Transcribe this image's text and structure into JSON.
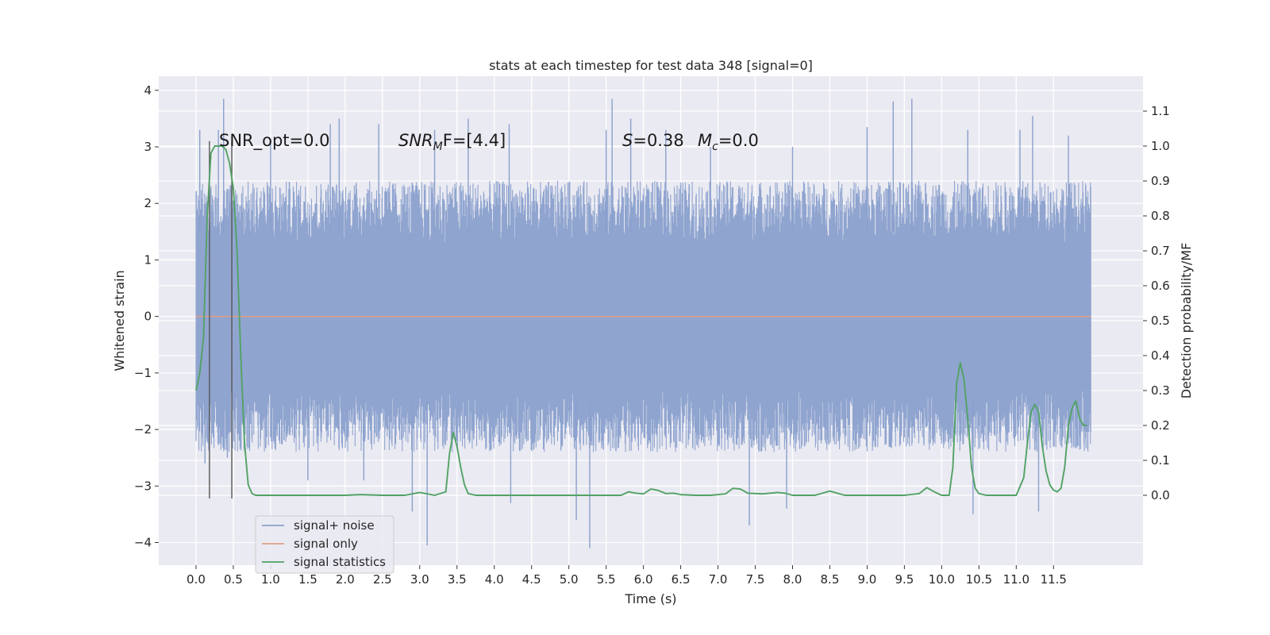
{
  "chart_data": {
    "type": "line",
    "title": "stats at each timestep for test data 348 [signal=0]",
    "xlabel": "Time (s)",
    "ylabel": "Whitened strain",
    "y2label": "Detection probability/MF",
    "xlim": [
      -0.5,
      12.7
    ],
    "ylim": [
      -4.4,
      4.25
    ],
    "y2lim": [
      -0.2,
      1.2
    ],
    "x_ticks": [
      0.0,
      0.5,
      1.0,
      1.5,
      2.0,
      2.5,
      3.0,
      3.5,
      4.0,
      4.5,
      5.0,
      5.5,
      6.0,
      6.5,
      7.0,
      7.5,
      8.0,
      8.5,
      9.0,
      9.5,
      10.0,
      10.5,
      11.0,
      11.5
    ],
    "x_tick_labels": [
      "0.0",
      "0.5",
      "1.0",
      "1.5",
      "2.0",
      "2.5",
      "3.0",
      "3.5",
      "4.0",
      "4.5",
      "5.0",
      "5.5",
      "6.0",
      "6.5",
      "7.0",
      "7.5",
      "8.0",
      "8.5",
      "9.0",
      "9.5",
      "10.0",
      "10.5",
      "11.0",
      "11.5"
    ],
    "y_ticks": [
      -4,
      -3,
      -2,
      -1,
      0,
      1,
      2,
      3,
      4
    ],
    "y_tick_labels": [
      "−4",
      "−3",
      "−2",
      "−1",
      "0",
      "1",
      "2",
      "3",
      "4"
    ],
    "y2_ticks": [
      0.0,
      0.1,
      0.2,
      0.3,
      0.4,
      0.5,
      0.6,
      0.7,
      0.8,
      0.9,
      1.0,
      1.1
    ],
    "y2_tick_labels": [
      "0.0",
      "0.1",
      "0.2",
      "0.3",
      "0.4",
      "0.5",
      "0.6",
      "0.7",
      "0.8",
      "0.9",
      "1.0",
      "1.1"
    ],
    "grid": true,
    "legend_position": "lower-left",
    "annotations": {
      "snr_opt": "SNR_opt=0.0",
      "snr_mf_main": "SNR",
      "snr_mf_sub": "M",
      "snr_mf_rest": "F=[4.4]",
      "s_var": "S",
      "s_val": "=0.38",
      "mc_var": "M",
      "mc_sub": "c",
      "mc_val": "=0.0"
    },
    "vlines": [
      0.18,
      0.48
    ],
    "vline_ymin": -3.22,
    "vline_ymax": 3.1,
    "noise": {
      "t_start": 0.0,
      "t_end": 12.0,
      "envelope_min": -2.4,
      "envelope_max": 2.4,
      "spikes": [
        {
          "x": 0.05,
          "y": 3.3
        },
        {
          "x": 0.12,
          "y": -2.6
        },
        {
          "x": 0.3,
          "y": 3.3
        },
        {
          "x": 0.37,
          "y": 3.85
        },
        {
          "x": 0.42,
          "y": -2.5
        },
        {
          "x": 1.0,
          "y": 3.05
        },
        {
          "x": 1.5,
          "y": -2.9
        },
        {
          "x": 1.8,
          "y": 3.4
        },
        {
          "x": 1.92,
          "y": 3.5
        },
        {
          "x": 2.25,
          "y": -2.9
        },
        {
          "x": 2.45,
          "y": 3.4
        },
        {
          "x": 2.9,
          "y": -3.45
        },
        {
          "x": 3.1,
          "y": -4.05
        },
        {
          "x": 3.2,
          "y": 3.3
        },
        {
          "x": 3.65,
          "y": 3.5
        },
        {
          "x": 4.2,
          "y": 3.4
        },
        {
          "x": 4.22,
          "y": -3.3
        },
        {
          "x": 5.1,
          "y": -3.6
        },
        {
          "x": 5.28,
          "y": -4.1
        },
        {
          "x": 5.58,
          "y": 3.85
        },
        {
          "x": 5.5,
          "y": 3.3
        },
        {
          "x": 5.83,
          "y": 3.5
        },
        {
          "x": 6.3,
          "y": 3.3
        },
        {
          "x": 6.9,
          "y": 3.0
        },
        {
          "x": 7.42,
          "y": -3.7
        },
        {
          "x": 8.0,
          "y": 3.0
        },
        {
          "x": 7.92,
          "y": -3.4
        },
        {
          "x": 9.0,
          "y": 3.35
        },
        {
          "x": 9.35,
          "y": 3.8
        },
        {
          "x": 9.6,
          "y": 3.85
        },
        {
          "x": 10.35,
          "y": 3.3
        },
        {
          "x": 10.42,
          "y": -3.5
        },
        {
          "x": 11.05,
          "y": 3.3
        },
        {
          "x": 11.22,
          "y": 3.55
        },
        {
          "x": 11.3,
          "y": -3.45
        },
        {
          "x": 11.7,
          "y": 3.2
        }
      ]
    },
    "series": [
      {
        "name": "signal+ noise",
        "color": "#8aa0cc",
        "axis": "left"
      },
      {
        "name": "signal only",
        "color": "#dd9f86",
        "axis": "left",
        "x": [
          0.0,
          12.0
        ],
        "y": [
          0.0,
          0.0
        ]
      },
      {
        "name": "signal statistics",
        "color": "#52a265",
        "axis": "right",
        "x": [
          0.0,
          0.05,
          0.1,
          0.15,
          0.2,
          0.25,
          0.3,
          0.35,
          0.4,
          0.45,
          0.5,
          0.55,
          0.6,
          0.65,
          0.7,
          0.75,
          0.8,
          0.9,
          1.0,
          1.5,
          2.0,
          2.2,
          2.5,
          2.8,
          3.0,
          3.2,
          3.35,
          3.4,
          3.45,
          3.5,
          3.55,
          3.6,
          3.65,
          3.75,
          3.9,
          4.5,
          5.0,
          5.5,
          5.7,
          5.8,
          5.9,
          6.0,
          6.1,
          6.2,
          6.3,
          6.4,
          6.5,
          6.7,
          6.9,
          7.1,
          7.2,
          7.3,
          7.4,
          7.6,
          7.8,
          7.9,
          8.0,
          8.3,
          8.5,
          8.7,
          9.0,
          9.5,
          9.7,
          9.8,
          9.9,
          10.0,
          10.1,
          10.15,
          10.2,
          10.25,
          10.3,
          10.35,
          10.4,
          10.45,
          10.5,
          10.6,
          10.8,
          11.0,
          11.1,
          11.15,
          11.2,
          11.25,
          11.3,
          11.35,
          11.4,
          11.45,
          11.5,
          11.55,
          11.6,
          11.65,
          11.7,
          11.75,
          11.8,
          11.85,
          11.9,
          11.95
        ],
        "y": [
          0.3,
          0.35,
          0.45,
          0.8,
          0.98,
          1.0,
          1.0,
          1.0,
          0.99,
          0.95,
          0.88,
          0.7,
          0.4,
          0.15,
          0.03,
          0.005,
          0.0,
          0.0,
          0.0,
          0.0,
          0.0,
          0.002,
          0.0,
          0.0,
          0.008,
          0.0,
          0.01,
          0.12,
          0.18,
          0.14,
          0.08,
          0.03,
          0.005,
          0.0,
          0.0,
          0.0,
          0.0,
          0.0,
          0.0,
          0.01,
          0.006,
          0.004,
          0.018,
          0.014,
          0.005,
          0.006,
          0.002,
          0.0,
          0.0,
          0.004,
          0.02,
          0.018,
          0.006,
          0.004,
          0.008,
          0.006,
          0.0,
          0.0,
          0.012,
          0.0,
          0.0,
          0.0,
          0.005,
          0.022,
          0.01,
          0.0,
          0.0,
          0.08,
          0.32,
          0.38,
          0.33,
          0.22,
          0.08,
          0.02,
          0.005,
          0.0,
          0.0,
          0.0,
          0.05,
          0.15,
          0.24,
          0.26,
          0.24,
          0.14,
          0.07,
          0.03,
          0.015,
          0.01,
          0.02,
          0.08,
          0.2,
          0.25,
          0.27,
          0.22,
          0.2,
          0.2
        ]
      }
    ]
  }
}
